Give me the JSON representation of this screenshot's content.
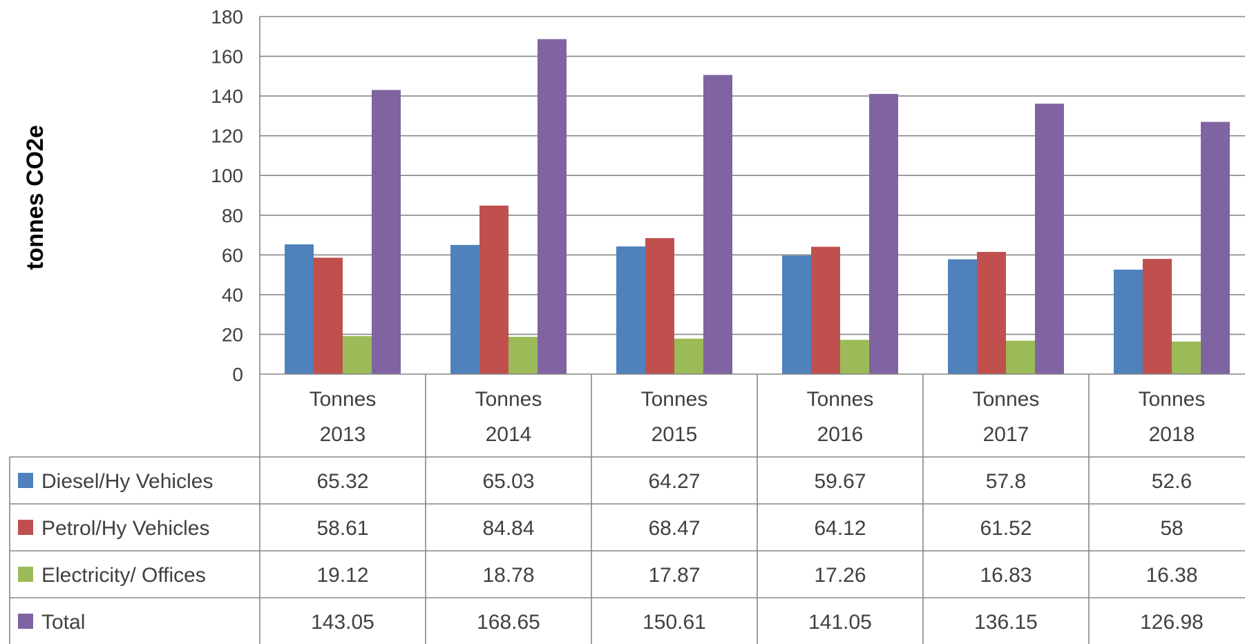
{
  "chart_data": {
    "type": "bar",
    "ylabel": "tonnes  CO2e",
    "ylim": [
      0,
      180
    ],
    "ytick_step": 20,
    "yticks": [
      "0",
      "20",
      "40",
      "60",
      "80",
      "100",
      "120",
      "140",
      "160",
      "180"
    ],
    "grid": true,
    "legend": "data-table-left",
    "categories": [
      [
        "Tonnes",
        "2013"
      ],
      [
        "Tonnes",
        "2014"
      ],
      [
        "Tonnes",
        "2015"
      ],
      [
        "Tonnes",
        "2016"
      ],
      [
        "Tonnes",
        "2017"
      ],
      [
        "Tonnes",
        "2018"
      ]
    ],
    "series": [
      {
        "name": "Diesel/Hy Vehicles",
        "color": "#4F81BD",
        "values": [
          65.32,
          65.03,
          64.27,
          59.67,
          57.8,
          52.6
        ],
        "labels": [
          "65.32",
          "65.03",
          "64.27",
          "59.67",
          "57.8",
          "52.6"
        ]
      },
      {
        "name": "Petrol/Hy Vehicles",
        "color": "#C0504D",
        "values": [
          58.61,
          84.84,
          68.47,
          64.12,
          61.52,
          58
        ],
        "labels": [
          "58.61",
          "84.84",
          "68.47",
          "64.12",
          "61.52",
          "58"
        ]
      },
      {
        "name": "Electricity/ Offices",
        "color": "#9BBB59",
        "values": [
          19.12,
          18.78,
          17.87,
          17.26,
          16.83,
          16.38
        ],
        "labels": [
          "19.12",
          "18.78",
          "17.87",
          "17.26",
          "16.83",
          "16.38"
        ]
      },
      {
        "name": "Total",
        "color": "#8064A2",
        "values": [
          143.05,
          168.65,
          150.61,
          141.05,
          136.15,
          126.98
        ],
        "labels": [
          "143.05",
          "168.65",
          "150.61",
          "141.05",
          "136.15",
          "126.98"
        ]
      }
    ]
  }
}
